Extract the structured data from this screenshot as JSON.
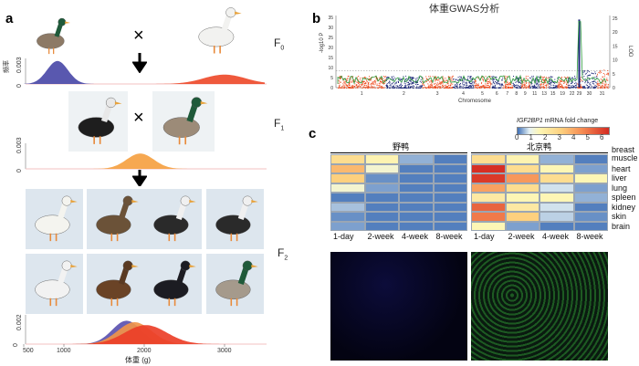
{
  "panel_a": {
    "label": "a",
    "cross_symbol": "×",
    "generations": [
      {
        "base": "F",
        "sub": "0"
      },
      {
        "base": "F",
        "sub": "1"
      },
      {
        "base": "F",
        "sub": "2"
      }
    ],
    "ylabel_freq": "频率",
    "yticks_f0": [
      "0",
      "0.003"
    ],
    "yticks_f1": [
      "0",
      "0.003"
    ],
    "yticks_f2": [
      "0",
      "0.002"
    ],
    "xticks": [
      "500",
      "1000",
      "2000",
      "3000"
    ],
    "xlabel": "体重 (g)",
    "f0_densities": [
      {
        "name": "wild",
        "mean": 920,
        "sd": 130,
        "peak": 0.0027,
        "color": "#4b4aa8"
      },
      {
        "name": "peking",
        "mean": 3000,
        "sd": 260,
        "peak": 0.0011,
        "color": "#ee4b2b"
      }
    ],
    "f1_densities": [
      {
        "name": "f1",
        "mean": 1950,
        "sd": 170,
        "peak": 0.0018,
        "color": "#f5a142"
      }
    ],
    "f2_densities": [
      {
        "name": "f2-a",
        "mean": 1780,
        "sd": 180,
        "peak": 0.0016,
        "color": "#5b53b0"
      },
      {
        "name": "f2-b",
        "mean": 1880,
        "sd": 210,
        "peak": 0.0015,
        "color": "#f0954a"
      },
      {
        "name": "f2-c",
        "mean": 2020,
        "sd": 260,
        "peak": 0.0013,
        "color": "#ec3f28"
      }
    ],
    "ducks_f0": [
      {
        "body": "#8d7a66",
        "head": "#1f5a3a"
      },
      {
        "body": "#f2f2f0",
        "head": "#f2f2f0"
      }
    ],
    "ducks_f1": [
      {
        "body": "#1e1e1e",
        "head": "#e8e8e8"
      },
      {
        "body": "#9c8b78",
        "head": "#1f5a3a"
      }
    ],
    "ducks_f2": [
      {
        "body": "#f4f4ef",
        "head": "#f4f4ef"
      },
      {
        "body": "#6b5238",
        "head": "#6b5238"
      },
      {
        "body": "#2a2a2a",
        "head": "#f0f0f0"
      },
      {
        "body": "#2a2a2a",
        "head": "#f0f0f0"
      },
      {
        "body": "#f2f2f2",
        "head": "#f2f2f2"
      },
      {
        "body": "#6a4326",
        "head": "#5a3a22"
      },
      {
        "body": "#1c1c22",
        "head": "#1c1c22"
      },
      {
        "body": "#a59a8c",
        "head": "#1f5a3a"
      }
    ]
  },
  "panel_b": {
    "label": "b",
    "title": "体重GWAS分析",
    "ylabel_left": "-log10 P",
    "ylabel_right": "LOD",
    "yticks_left": [
      "0",
      "5",
      "10",
      "15",
      "20",
      "25",
      "30",
      "35"
    ],
    "yticks_right": [
      "0",
      "5",
      "10",
      "15",
      "20",
      "25"
    ],
    "xlabel": "Chromosome",
    "chromosomes": [
      "1",
      "2",
      "3",
      "4",
      "5",
      "6",
      "7",
      "8",
      "9",
      "11",
      "13",
      "15",
      "19",
      "22",
      "29",
      "30",
      "31"
    ],
    "colors": {
      "odd": "#ee4b1e",
      "even": "#1f2a7a",
      "lod": "#2a9a3a"
    },
    "peak_chromosome": "29",
    "peak_value": 34
  },
  "panel_c": {
    "label": "c",
    "colorbar_title_gene": "IGF2BP1",
    "colorbar_title_rest": " mRNA fold change",
    "colorbar_ticks": [
      "0",
      "1",
      "2",
      "3",
      "4",
      "5",
      "6"
    ],
    "groups": [
      "野鸭",
      "北京鸭"
    ],
    "columns": [
      "1-day",
      "2-week",
      "4-week",
      "8-week"
    ],
    "rows": [
      "breast muscle",
      "heart",
      "liver",
      "lung",
      "spleen",
      "kidney",
      "skin",
      "brain"
    ],
    "values_wild": [
      [
        2.5,
        1.6,
        0.4,
        0.1
      ],
      [
        3.5,
        1.2,
        0.1,
        0.1
      ],
      [
        3.0,
        0.2,
        0.1,
        0.1
      ],
      [
        1.2,
        0.3,
        0.1,
        0.1
      ],
      [
        0.1,
        0.1,
        0.1,
        0.1
      ],
      [
        0.5,
        0.1,
        0.1,
        0.1
      ],
      [
        0.2,
        0.1,
        0.1,
        0.1
      ],
      [
        0.3,
        0.1,
        0.1,
        0.1
      ]
    ],
    "values_peking": [
      [
        2.5,
        1.6,
        0.4,
        0.1
      ],
      [
        6.2,
        2.5,
        1.5,
        0.3
      ],
      [
        6.0,
        4.2,
        2.5,
        1.5
      ],
      [
        4.0,
        2.5,
        0.7,
        0.3
      ],
      [
        2.0,
        1.5,
        1.5,
        0.4
      ],
      [
        5.2,
        2.0,
        0.7,
        0.1
      ],
      [
        4.8,
        3.0,
        0.6,
        0.2
      ],
      [
        1.5,
        0.3,
        0.1,
        0.1
      ]
    ]
  }
}
